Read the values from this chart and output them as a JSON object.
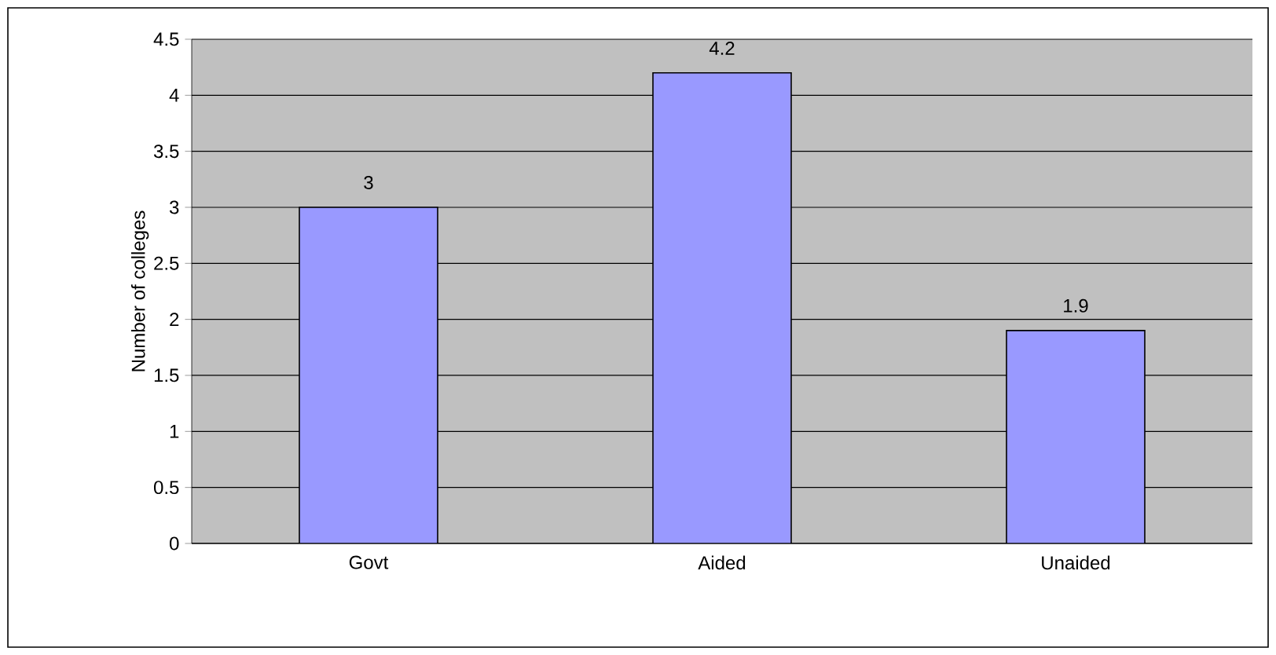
{
  "chart_data": {
    "type": "bar",
    "ylabel": "Number of colleges",
    "categories": [
      "Govt",
      "Aided",
      "Unaided"
    ],
    "values": [
      3,
      4.2,
      1.9
    ],
    "color": "#9999ff",
    "ylim": [
      0,
      4.5
    ],
    "yticks": [
      0,
      0.5,
      1,
      1.5,
      2,
      2.5,
      3,
      3.5,
      4,
      4.5
    ],
    "grid": "y",
    "data_labels": true
  }
}
